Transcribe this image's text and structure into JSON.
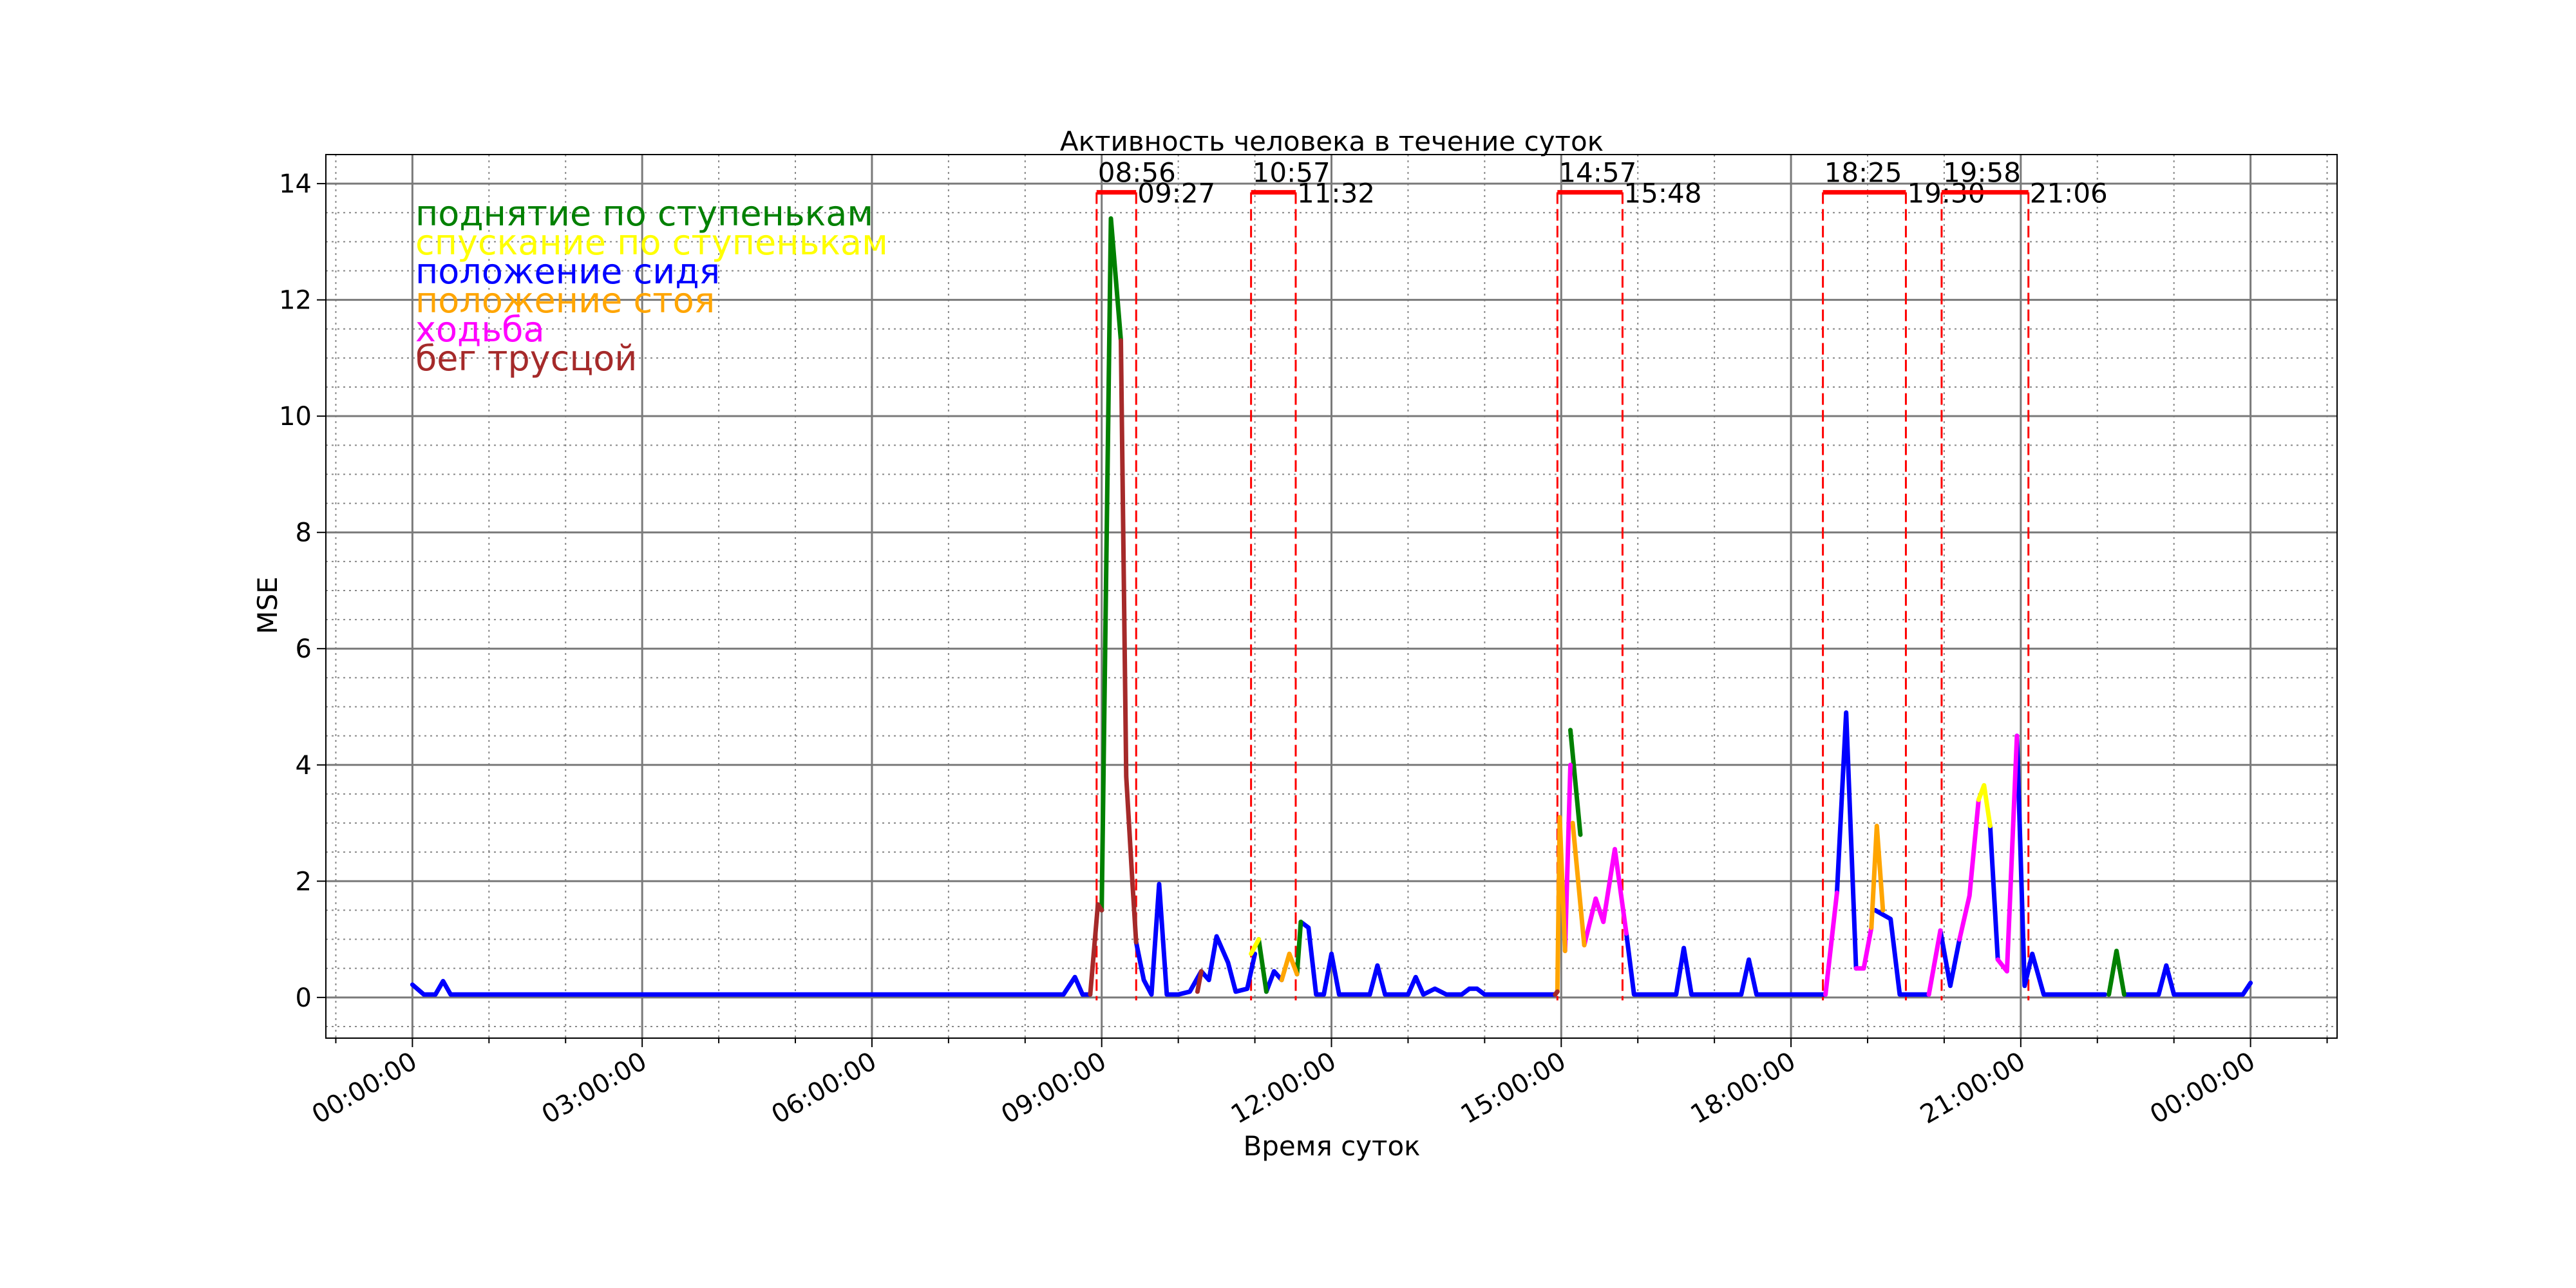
{
  "chart_data": {
    "type": "line",
    "title": "Активность человека в течение суток",
    "xlabel": "Время суток",
    "ylabel": "MSE",
    "xlim": [
      -1.13,
      25.13
    ],
    "ylim": [
      -0.7,
      14.5
    ],
    "grid": true,
    "legend_position": "top-left",
    "x_ticks": [
      {
        "x": 0,
        "label": "00:00:00"
      },
      {
        "x": 3,
        "label": "03:00:00"
      },
      {
        "x": 6,
        "label": "06:00:00"
      },
      {
        "x": 9,
        "label": "09:00:00"
      },
      {
        "x": 12,
        "label": "12:00:00"
      },
      {
        "x": 15,
        "label": "15:00:00"
      },
      {
        "x": 18,
        "label": "18:00:00"
      },
      {
        "x": 21,
        "label": "21:00:00"
      },
      {
        "x": 24,
        "label": "00:00:00"
      }
    ],
    "y_ticks": [
      {
        "y": 0,
        "label": "0"
      },
      {
        "y": 2,
        "label": "2"
      },
      {
        "y": 4,
        "label": "4"
      },
      {
        "y": 6,
        "label": "6"
      },
      {
        "y": 8,
        "label": "8"
      },
      {
        "y": 10,
        "label": "10"
      },
      {
        "y": 12,
        "label": "12"
      },
      {
        "y": 14,
        "label": "14"
      }
    ],
    "legend": [
      {
        "label": "поднятие по ступенькам",
        "color": "#008000"
      },
      {
        "label": "спускание по ступенькам",
        "color": "#ffff00"
      },
      {
        "label": "положение сидя",
        "color": "#0000ff"
      },
      {
        "label": "положение стоя",
        "color": "#ffa500"
      },
      {
        "label": "ходьба",
        "color": "#ff00ff"
      },
      {
        "label": "бег трусцой",
        "color": "#a52a2a"
      }
    ],
    "activity_periods": [
      {
        "start": 8.9333,
        "end": 9.45,
        "start_label": "08:56",
        "end_label": "09:27"
      },
      {
        "start": 10.95,
        "end": 11.5333,
        "start_label": "10:57",
        "end_label": "11:32"
      },
      {
        "start": 14.95,
        "end": 15.8,
        "start_label": "14:57",
        "end_label": "15:48"
      },
      {
        "start": 18.4167,
        "end": 19.5,
        "start_label": "18:25",
        "end_label": "19:30"
      },
      {
        "start": 19.9667,
        "end": 21.1,
        "start_label": "19:58",
        "end_label": "21:06"
      }
    ],
    "series": [
      {
        "color": "#0000ff",
        "segments": [
          [
            [
              0,
              0.22
            ],
            [
              0.15,
              0.05
            ],
            [
              0.3,
              0.05
            ],
            [
              0.4,
              0.28
            ],
            [
              0.5,
              0.05
            ],
            [
              1.5,
              0.05
            ],
            [
              3,
              0.05
            ],
            [
              4.5,
              0.05
            ],
            [
              6,
              0.05
            ],
            [
              7.5,
              0.05
            ],
            [
              8.5,
              0.05
            ],
            [
              8.65,
              0.35
            ],
            [
              8.75,
              0.05
            ],
            [
              8.85,
              0.05
            ]
          ],
          [
            [
              9.45,
              0.95
            ],
            [
              9.55,
              0.3
            ],
            [
              9.65,
              0.05
            ],
            [
              9.75,
              1.95
            ],
            [
              9.85,
              0.05
            ],
            [
              10,
              0.05
            ],
            [
              10.15,
              0.1
            ],
            [
              10.3,
              0.45
            ],
            [
              10.4,
              0.3
            ],
            [
              10.5,
              1.05
            ],
            [
              10.65,
              0.6
            ],
            [
              10.75,
              0.1
            ],
            [
              10.9,
              0.15
            ],
            [
              11,
              0.75
            ]
          ],
          [
            [
              11.15,
              0.1
            ],
            [
              11.25,
              0.45
            ],
            [
              11.35,
              0.3
            ]
          ],
          [
            [
              11.6,
              1.3
            ],
            [
              11.7,
              1.2
            ],
            [
              11.8,
              0.05
            ],
            [
              11.9,
              0.05
            ],
            [
              12,
              0.75
            ],
            [
              12.1,
              0.05
            ],
            [
              12.4,
              0.05
            ],
            [
              12.5,
              0.05
            ],
            [
              12.6,
              0.55
            ],
            [
              12.7,
              0.05
            ],
            [
              12.9,
              0.05
            ],
            [
              13,
              0.05
            ],
            [
              13.1,
              0.35
            ],
            [
              13.2,
              0.05
            ],
            [
              13.35,
              0.15
            ],
            [
              13.5,
              0.05
            ],
            [
              13.7,
              0.05
            ],
            [
              13.8,
              0.15
            ],
            [
              13.9,
              0.15
            ],
            [
              14,
              0.05
            ],
            [
              14.2,
              0.05
            ],
            [
              14.5,
              0.05
            ],
            [
              14.8,
              0.05
            ],
            [
              14.92,
              0.05
            ]
          ],
          [
            [
              15.85,
              1.1
            ],
            [
              15.95,
              0.05
            ],
            [
              16.2,
              0.05
            ],
            [
              16.5,
              0.05
            ],
            [
              16.6,
              0.85
            ],
            [
              16.7,
              0.05
            ],
            [
              17,
              0.05
            ],
            [
              17.35,
              0.05
            ],
            [
              17.45,
              0.65
            ],
            [
              17.55,
              0.05
            ],
            [
              17.8,
              0.05
            ],
            [
              18.2,
              0.05
            ],
            [
              18.45,
              0.05
            ]
          ],
          [
            [
              18.6,
              1.8
            ],
            [
              18.72,
              4.9
            ],
            [
              18.85,
              0.5
            ]
          ],
          [
            [
              19.1,
              1.5
            ],
            [
              19.3,
              1.35
            ],
            [
              19.42,
              0.05
            ],
            [
              19.6,
              0.05
            ],
            [
              19.8,
              0.05
            ]
          ],
          [
            [
              19.95,
              1.15
            ],
            [
              20.08,
              0.2
            ],
            [
              20.2,
              1.0
            ]
          ],
          [
            [
              20.6,
              2.95
            ],
            [
              20.7,
              0.65
            ]
          ],
          [
            [
              20.95,
              4.5
            ],
            [
              21.05,
              0.2
            ],
            [
              21.15,
              0.75
            ],
            [
              21.3,
              0.05
            ],
            [
              21.5,
              0.05
            ],
            [
              21.8,
              0.05
            ],
            [
              22.1,
              0.05
            ]
          ],
          [
            [
              22.35,
              0.05
            ],
            [
              22.6,
              0.05
            ],
            [
              22.8,
              0.05
            ],
            [
              22.9,
              0.55
            ],
            [
              23,
              0.05
            ],
            [
              23.3,
              0.05
            ],
            [
              23.6,
              0.05
            ],
            [
              23.9,
              0.05
            ],
            [
              24,
              0.25
            ]
          ]
        ]
      },
      {
        "color": "#008000",
        "segments": [
          [
            [
              9,
              1.5
            ],
            [
              9.12,
              13.4
            ],
            [
              9.25,
              11.3
            ]
          ],
          [
            [
              11.15,
              0.1
            ],
            [
              11.05,
              1.0
            ]
          ],
          [
            [
              11.55,
              0.4
            ],
            [
              11.6,
              1.3
            ]
          ],
          [
            [
              15.12,
              4.6
            ],
            [
              15.25,
              2.8
            ]
          ],
          [
            [
              22.15,
              0.05
            ],
            [
              22.25,
              0.8
            ],
            [
              22.35,
              0.05
            ]
          ]
        ]
      },
      {
        "color": "#ff00ff",
        "segments": [
          [
            [
              15.05,
              0.8
            ],
            [
              15.12,
              4.0
            ]
          ],
          [
            [
              15.3,
              0.9
            ],
            [
              15.45,
              1.7
            ],
            [
              15.55,
              1.3
            ],
            [
              15.7,
              2.55
            ],
            [
              15.85,
              1.1
            ]
          ],
          [
            [
              18.45,
              0.05
            ],
            [
              18.6,
              1.8
            ]
          ],
          [
            [
              18.85,
              0.5
            ],
            [
              18.95,
              0.5
            ],
            [
              19.05,
              1.2
            ]
          ],
          [
            [
              19.8,
              0.05
            ],
            [
              19.95,
              1.15
            ]
          ],
          [
            [
              20.2,
              1.0
            ],
            [
              20.33,
              1.75
            ],
            [
              20.45,
              3.4
            ]
          ],
          [
            [
              20.7,
              0.65
            ],
            [
              20.82,
              0.45
            ],
            [
              20.95,
              4.5
            ]
          ]
        ]
      },
      {
        "color": "#ffa500",
        "segments": [
          [
            [
              14.95,
              0.1
            ],
            [
              14.98,
              3.1
            ],
            [
              15.05,
              0.8
            ]
          ],
          [
            [
              15.15,
              3.0
            ],
            [
              15.3,
              0.9
            ]
          ],
          [
            [
              19.05,
              1.2
            ],
            [
              19.12,
              2.95
            ],
            [
              19.2,
              1.5
            ]
          ],
          [
            [
              11.35,
              0.3
            ],
            [
              11.45,
              0.75
            ],
            [
              11.55,
              0.4
            ]
          ]
        ]
      },
      {
        "color": "#ffff00",
        "segments": [
          [
            [
              10.95,
              0.75
            ],
            [
              11.05,
              1.0
            ]
          ],
          [
            [
              20.45,
              3.4
            ],
            [
              20.52,
              3.65
            ],
            [
              20.6,
              2.95
            ]
          ]
        ]
      },
      {
        "color": "#a52a2a",
        "segments": [
          [
            [
              8.85,
              0.05
            ],
            [
              8.95,
              1.6
            ],
            [
              9.0,
              1.5
            ]
          ],
          [
            [
              9.25,
              11.3
            ],
            [
              9.32,
              3.8
            ],
            [
              9.4,
              2.0
            ],
            [
              9.45,
              0.95
            ]
          ],
          [
            [
              14.92,
              0.05
            ],
            [
              14.95,
              0.1
            ]
          ],
          [
            [
              10.25,
              0.1
            ],
            [
              10.3,
              0.45
            ]
          ]
        ]
      }
    ]
  }
}
